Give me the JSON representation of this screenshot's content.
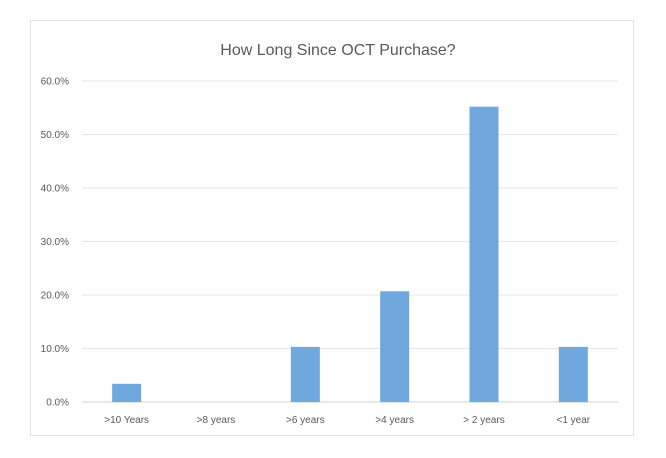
{
  "chart_data": {
    "type": "bar",
    "title": "How Long Since OCT Purchase?",
    "xlabel": "",
    "ylabel": "",
    "categories": [
      ">10 Years",
      ">8 years",
      ">6 years",
      ">4 years",
      "> 2 years",
      "<1 year"
    ],
    "values": [
      3.4,
      0.0,
      10.3,
      20.7,
      55.2,
      10.3
    ],
    "value_unit": "percent",
    "ylim": [
      0,
      60
    ],
    "yticks": [
      "0.0%",
      "10.0%",
      "20.0%",
      "30.0%",
      "40.0%",
      "50.0%",
      "60.0%"
    ],
    "grid": true,
    "legend": "none",
    "colors": {
      "bar": "#6fa8dc",
      "grid": "#e6e6e6",
      "text": "#595959"
    }
  }
}
